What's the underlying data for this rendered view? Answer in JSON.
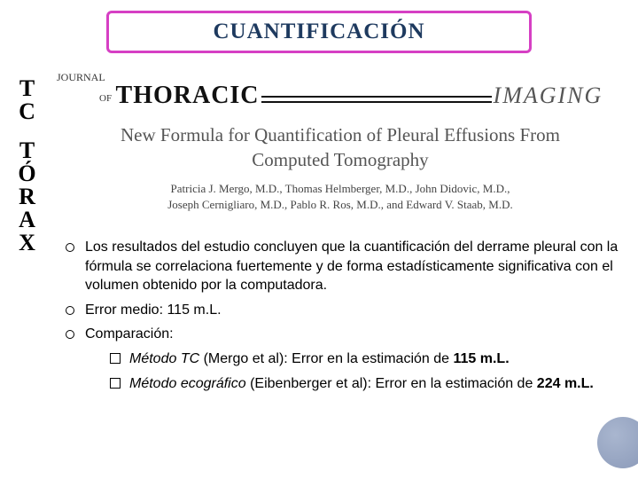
{
  "title": "CUANTIFICACIÓN",
  "sidebar": {
    "word1": "TC",
    "word2": "TÓRAX"
  },
  "journal": {
    "label": "JOURNAL",
    "of": "OF",
    "thoracic": "THORACIC",
    "imaging": "IMAGING"
  },
  "article": {
    "title_line1": "New Formula for Quantification of Pleural Effusions From",
    "title_line2": "Computed Tomography",
    "authors_line1": "Patricia J. Mergo, M.D., Thomas Helmberger, M.D., John Didovic, M.D.,",
    "authors_line2": "Joseph Cernigliaro, M.D., Pablo R. Ros, M.D., and Edward V. Staab, M.D."
  },
  "bullets": {
    "b1": "Los resultados del estudio concluyen que la cuantificación del derrame pleural con la fórmula se correlaciona fuertemente y de forma estadísticamente significativa con el volumen obtenido por la computadora.",
    "b2": "Error medio: 115 m.L.",
    "b3": "Comparación:",
    "sub1_italic": "Método TC",
    "sub1_rest": " (Mergo et al): Error en la estimación de ",
    "sub1_bold": "115 m.L.",
    "sub2_italic": "Método ecográfico",
    "sub2_rest": " (Eibenberger et al): Error en la estimación de ",
    "sub2_bold": "224 m.L."
  },
  "colors": {
    "title_border": "#d63fc4",
    "title_text": "#1e3a5f",
    "body_text": "#000000",
    "article_title": "#555555",
    "background": "#ffffff"
  }
}
